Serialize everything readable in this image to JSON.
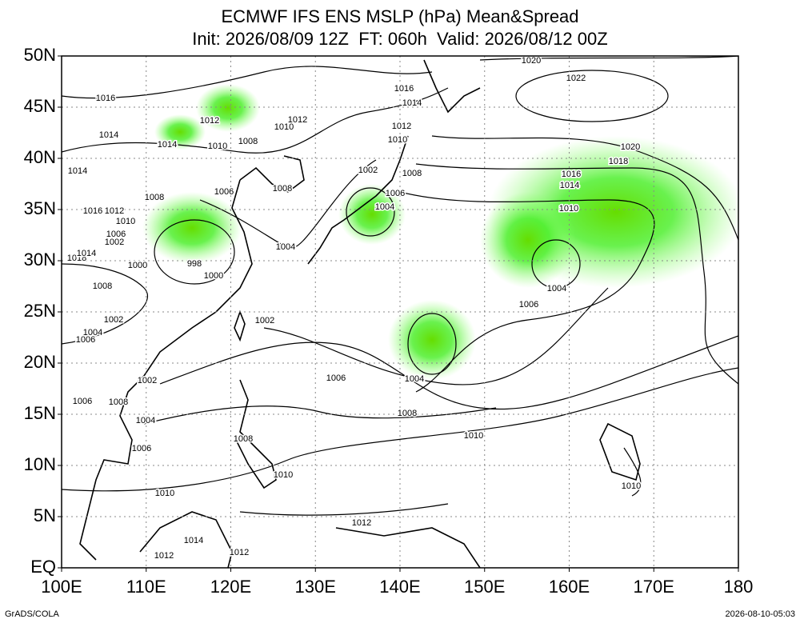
{
  "header": {
    "title": "ECMWF IFS ENS MSLP (hPa) Mean&Spread",
    "subtitle": "Init: 2026/08/09 12Z  FT: 060h  Valid: 2026/08/12 00Z"
  },
  "axes": {
    "lat_ticks": [
      {
        "value": 50,
        "label": "50N"
      },
      {
        "value": 45,
        "label": "45N"
      },
      {
        "value": 40,
        "label": "40N"
      },
      {
        "value": 35,
        "label": "35N"
      },
      {
        "value": 30,
        "label": "30N"
      },
      {
        "value": 25,
        "label": "25N"
      },
      {
        "value": 20,
        "label": "20N"
      },
      {
        "value": 15,
        "label": "15N"
      },
      {
        "value": 10,
        "label": "10N"
      },
      {
        "value": 5,
        "label": "5N"
      },
      {
        "value": 0,
        "label": "EQ"
      }
    ],
    "lon_ticks": [
      {
        "value": 100,
        "label": "100E"
      },
      {
        "value": 110,
        "label": "110E"
      },
      {
        "value": 120,
        "label": "120E"
      },
      {
        "value": 130,
        "label": "130E"
      },
      {
        "value": 140,
        "label": "140E"
      },
      {
        "value": 150,
        "label": "150E"
      },
      {
        "value": 160,
        "label": "160E"
      },
      {
        "value": 170,
        "label": "170E"
      },
      {
        "value": 180,
        "label": "180"
      }
    ]
  },
  "contour_labels": [
    "1020",
    "1022",
    "1016",
    "1016",
    "1014",
    "1012",
    "1012",
    "1010",
    "1012",
    "1014",
    "1014",
    "1010",
    "1008",
    "1010",
    "1020",
    "1018",
    "1014",
    "1002",
    "1008",
    "1016",
    "1014",
    "1006",
    "1006",
    "1008",
    "1008",
    "1004",
    "1010",
    "1016",
    "1012",
    "1010",
    "1006",
    "1002",
    "1004",
    "1018",
    "1014",
    "1000",
    "998",
    "1000",
    "1004",
    "1008",
    "1006",
    "1002",
    "1002",
    "1004",
    "1006",
    "1006",
    "1004",
    "1002",
    "1008",
    "1006",
    "1008",
    "1004",
    "1010",
    "1008",
    "1006",
    "1010",
    "1010",
    "1010",
    "1012",
    "1014",
    "1012",
    "1012"
  ],
  "footer": {
    "left": "GrADS/COLA",
    "right": "2026-08-10-05:03"
  }
}
